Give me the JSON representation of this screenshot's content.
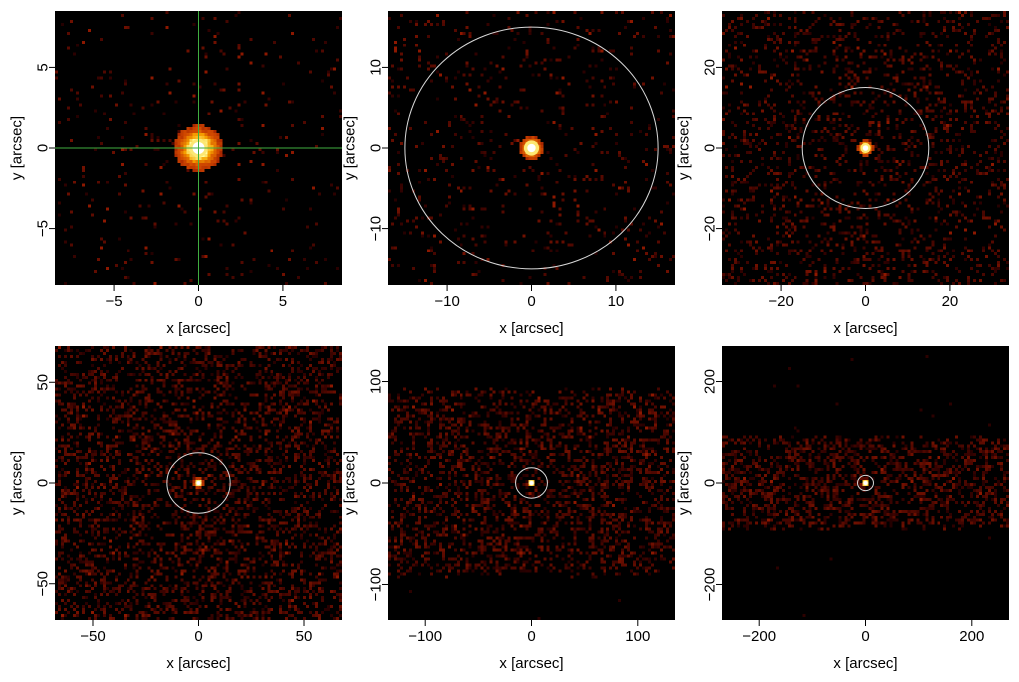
{
  "colors": {
    "background": "#000000",
    "colormap": [
      "#000000",
      "#2a0000",
      "#5a0a00",
      "#9a1c00",
      "#d24a00",
      "#f7a400",
      "#ffff9a",
      "#ffffff"
    ],
    "crosshair": "#3fae3f",
    "aperture_circle": "#d8d8d8",
    "source_marker": "#ffffff"
  },
  "chart_data": [
    {
      "type": "heatmap",
      "panel": 1,
      "xlabel": "x [arcsec]",
      "ylabel": "y [arcsec]",
      "xlim": [
        -8.5,
        8.5
      ],
      "ylim": [
        -8.5,
        8.5
      ],
      "xticks": [
        -5,
        0,
        5
      ],
      "yticks": [
        -5,
        0,
        5
      ],
      "tick_labels_x": [
        "−5",
        "0",
        "5"
      ],
      "tick_labels_y": [
        "−5",
        "0",
        "5"
      ],
      "overlay": "crosshair",
      "crosshair_center": [
        0,
        0
      ],
      "source_center": [
        0,
        0
      ],
      "source_radius": 0.9,
      "background_level": 0.03,
      "band_half_height": null
    },
    {
      "type": "heatmap",
      "panel": 2,
      "xlabel": "x [arcsec]",
      "ylabel": "y [arcsec]",
      "xlim": [
        -17,
        17
      ],
      "ylim": [
        -17,
        17
      ],
      "xticks": [
        -10,
        0,
        10
      ],
      "yticks": [
        -10,
        0,
        10
      ],
      "tick_labels_x": [
        "−10",
        "0",
        "10"
      ],
      "tick_labels_y": [
        "−10",
        "0",
        "10"
      ],
      "overlay": "circle",
      "circle_center": [
        0,
        0
      ],
      "circle_radius": 15,
      "source_center": [
        0,
        0
      ],
      "source_radius": 0.9,
      "background_level": 0.06,
      "band_half_height": null
    },
    {
      "type": "heatmap",
      "panel": 3,
      "xlabel": "x [arcsec]",
      "ylabel": "y [arcsec]",
      "xlim": [
        -34,
        34
      ],
      "ylim": [
        -34,
        34
      ],
      "xticks": [
        -20,
        0,
        20
      ],
      "yticks": [
        -20,
        0,
        20
      ],
      "tick_labels_x": [
        "−20",
        "0",
        "20"
      ],
      "tick_labels_y": [
        "−20",
        "0",
        "20"
      ],
      "overlay": "circle",
      "circle_center": [
        0,
        0
      ],
      "circle_radius": 15,
      "source_center": [
        0,
        0
      ],
      "source_radius": 1.2,
      "background_level": 0.18,
      "band_half_height": null
    },
    {
      "type": "heatmap",
      "panel": 4,
      "xlabel": "x [arcsec]",
      "ylabel": "y [arcsec]",
      "xlim": [
        -68,
        68
      ],
      "ylim": [
        -68,
        68
      ],
      "xticks": [
        -50,
        0,
        50
      ],
      "yticks": [
        -50,
        0,
        50
      ],
      "tick_labels_x": [
        "−50",
        "0",
        "50"
      ],
      "tick_labels_y": [
        "−50",
        "0",
        "50"
      ],
      "overlay": "circle",
      "circle_center": [
        0,
        0
      ],
      "circle_radius": 15,
      "source_center": [
        0,
        0
      ],
      "source_radius": 1.5,
      "background_level": 0.32,
      "band_half_height": null
    },
    {
      "type": "heatmap",
      "panel": 5,
      "xlabel": "x [arcsec]",
      "ylabel": "y [arcsec]",
      "xlim": [
        -135,
        135
      ],
      "ylim": [
        -135,
        135
      ],
      "xticks": [
        -100,
        0,
        100
      ],
      "yticks": [
        -100,
        0,
        100
      ],
      "tick_labels_x": [
        "−100",
        "0",
        "100"
      ],
      "tick_labels_y": [
        "−100",
        "0",
        "100"
      ],
      "overlay": "circle",
      "circle_center": [
        0,
        0
      ],
      "circle_radius": 15,
      "source_center": [
        0,
        0
      ],
      "source_radius": 2.5,
      "background_level": 0.34,
      "band_half_height": 90
    },
    {
      "type": "heatmap",
      "panel": 6,
      "xlabel": "x [arcsec]",
      "ylabel": "y [arcsec]",
      "xlim": [
        -270,
        270
      ],
      "ylim": [
        -270,
        270
      ],
      "xticks": [
        -200,
        0,
        200
      ],
      "yticks": [
        -200,
        0,
        200
      ],
      "tick_labels_x": [
        "−200",
        "0",
        "200"
      ],
      "tick_labels_y": [
        "−200",
        "0",
        "200"
      ],
      "overlay": "circle",
      "circle_center": [
        0,
        0
      ],
      "circle_radius": 15,
      "source_center": [
        0,
        0
      ],
      "source_radius": 5,
      "background_level": 0.4,
      "band_half_height": 90
    }
  ]
}
